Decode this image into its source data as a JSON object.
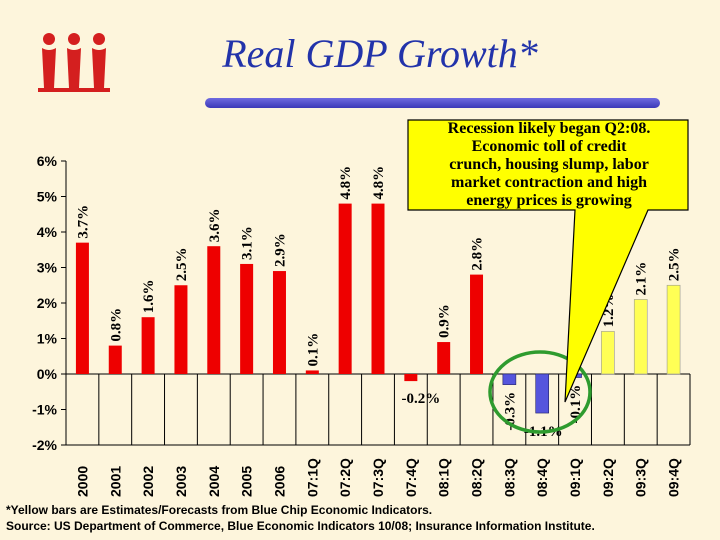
{
  "page": {
    "title": "Real GDP Growth*",
    "footnote": "*Yellow bars are Estimates/Forecasts from Blue Chip Economic Indicators.",
    "source": "Source: US Department of Commerce, Blue Economic Indicators 10/08; Insurance Information Institute."
  },
  "callout": {
    "lines": [
      "Recession likely began Q2:08.",
      "Economic toll of credit",
      "crunch, housing slump, labor",
      "market contraction and high",
      "energy prices is growing"
    ]
  },
  "colors": {
    "actual": "#ee0000",
    "estimate": "#ffff55",
    "negative_estimate": "#5555dd",
    "title": "#2233aa",
    "callout_fill": "#ffff00",
    "circle": "#2e9b2e",
    "background": "#fdf5dc"
  },
  "logo_icon": "iii-logo-icon",
  "chart_data": {
    "type": "bar",
    "title": "Real GDP Growth*",
    "ylim": [
      -2,
      6
    ],
    "yticks": [
      -2,
      -1,
      0,
      1,
      2,
      3,
      4,
      5,
      6
    ],
    "ytick_labels": [
      "-2%",
      "-1%",
      "0%",
      "1%",
      "2%",
      "3%",
      "4%",
      "5%",
      "6%"
    ],
    "grid": false,
    "categories": [
      "2000",
      "2001",
      "2002",
      "2003",
      "2004",
      "2005",
      "2006",
      "07:1Q",
      "07:2Q",
      "07:3Q",
      "07:4Q",
      "08:1Q",
      "08:2Q",
      "08:3Q",
      "08:4Q",
      "09:1Q",
      "09:2Q",
      "09:3Q",
      "09:4Q"
    ],
    "values": [
      3.7,
      0.8,
      1.6,
      2.5,
      3.6,
      3.1,
      2.9,
      0.1,
      4.8,
      4.8,
      -0.2,
      0.9,
      2.8,
      -0.3,
      -1.1,
      -0.1,
      1.2,
      2.1,
      2.5
    ],
    "labels": [
      "3.7%",
      "0.8%",
      "1.6%",
      "2.5%",
      "3.6%",
      "3.1%",
      "2.9%",
      "0.1%",
      "4.8%",
      "4.8%",
      "-0.2%",
      "0.9%",
      "2.8%",
      "-0.3%",
      "-1.1%",
      "-0.1%",
      "1.2%",
      "2.1%",
      "2.5%"
    ],
    "estimate": [
      false,
      false,
      false,
      false,
      false,
      false,
      false,
      false,
      false,
      false,
      false,
      false,
      false,
      true,
      true,
      true,
      true,
      true,
      true
    ]
  }
}
